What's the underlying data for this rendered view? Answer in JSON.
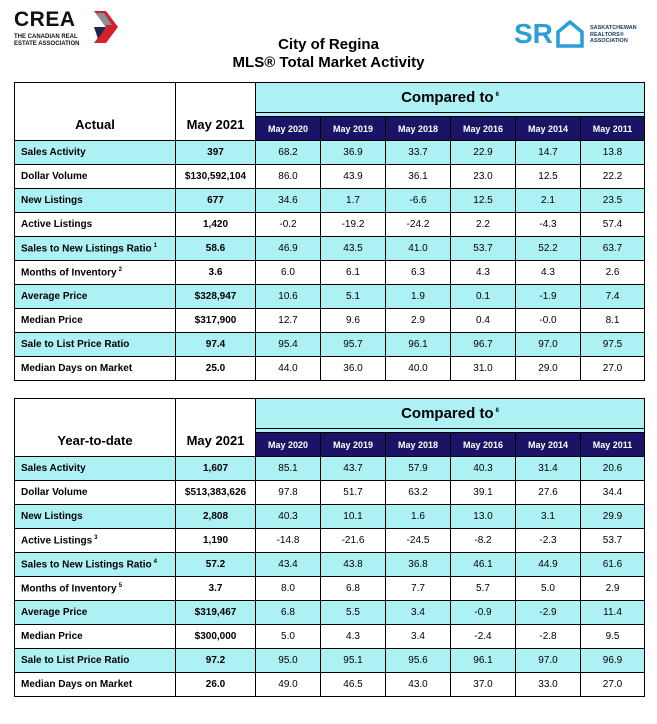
{
  "header": {
    "crea_name": "CREA",
    "crea_tagline_1": "THE CANADIAN REAL",
    "crea_tagline_2": "ESTATE ASSOCIATION",
    "sr_mark": "SR",
    "sr_line_1": "SASKATCHEWAN",
    "sr_line_2": "REALTORS®",
    "sr_line_3": "ASSOCIATION",
    "title": "City of Regina",
    "subtitle": "MLS® Total Market Activity"
  },
  "compared_label": "Compared to",
  "compared_footnote": "6",
  "current_period": "May 2021",
  "compare_periods": [
    "May 2020",
    "May 2019",
    "May 2018",
    "May 2016",
    "May 2014",
    "May 2011"
  ],
  "actual": {
    "label": "Actual",
    "rows": [
      {
        "metric": "Sales Activity",
        "fn": "",
        "value": "397",
        "cmp": [
          "68.2",
          "36.9",
          "33.7",
          "22.9",
          "14.7",
          "13.8"
        ]
      },
      {
        "metric": "Dollar Volume",
        "fn": "",
        "value": "$130,592,104",
        "cmp": [
          "86.0",
          "43.9",
          "36.1",
          "23.0",
          "12.5",
          "22.2"
        ]
      },
      {
        "metric": "New Listings",
        "fn": "",
        "value": "677",
        "cmp": [
          "34.6",
          "1.7",
          "-6.6",
          "12.5",
          "2.1",
          "23.5"
        ]
      },
      {
        "metric": "Active Listings",
        "fn": "",
        "value": "1,420",
        "cmp": [
          "-0.2",
          "-19.2",
          "-24.2",
          "2.2",
          "-4.3",
          "57.4"
        ]
      },
      {
        "metric": "Sales to New Listings Ratio",
        "fn": "1",
        "value": "58.6",
        "cmp": [
          "46.9",
          "43.5",
          "41.0",
          "53.7",
          "52.2",
          "63.7"
        ]
      },
      {
        "metric": "Months of Inventory",
        "fn": "2",
        "value": "3.6",
        "cmp": [
          "6.0",
          "6.1",
          "6.3",
          "4.3",
          "4.3",
          "2.6"
        ]
      },
      {
        "metric": "Average Price",
        "fn": "",
        "value": "$328,947",
        "cmp": [
          "10.6",
          "5.1",
          "1.9",
          "0.1",
          "-1.9",
          "7.4"
        ]
      },
      {
        "metric": "Median Price",
        "fn": "",
        "value": "$317,900",
        "cmp": [
          "12.7",
          "9.6",
          "2.9",
          "0.4",
          "-0.0",
          "8.1"
        ]
      },
      {
        "metric": "Sale to List Price Ratio",
        "fn": "",
        "value": "97.4",
        "cmp": [
          "95.4",
          "95.7",
          "96.1",
          "96.7",
          "97.0",
          "97.5"
        ]
      },
      {
        "metric": "Median Days on Market",
        "fn": "",
        "value": "25.0",
        "cmp": [
          "44.0",
          "36.0",
          "40.0",
          "31.0",
          "29.0",
          "27.0"
        ]
      }
    ]
  },
  "ytd": {
    "label": "Year-to-date",
    "rows": [
      {
        "metric": "Sales Activity",
        "fn": "",
        "value": "1,607",
        "cmp": [
          "85.1",
          "43.7",
          "57.9",
          "40.3",
          "31.4",
          "20.6"
        ]
      },
      {
        "metric": "Dollar Volume",
        "fn": "",
        "value": "$513,383,626",
        "cmp": [
          "97.8",
          "51.7",
          "63.2",
          "39.1",
          "27.6",
          "34.4"
        ]
      },
      {
        "metric": "New Listings",
        "fn": "",
        "value": "2,808",
        "cmp": [
          "40.3",
          "10.1",
          "1.6",
          "13.0",
          "3.1",
          "29.9"
        ]
      },
      {
        "metric": "Active Listings",
        "fn": "3",
        "value": "1,190",
        "cmp": [
          "-14.8",
          "-21.6",
          "-24.5",
          "-8.2",
          "-2.3",
          "53.7"
        ]
      },
      {
        "metric": "Sales to New Listings Ratio",
        "fn": "4",
        "value": "57.2",
        "cmp": [
          "43.4",
          "43.8",
          "36.8",
          "46.1",
          "44.9",
          "61.6"
        ]
      },
      {
        "metric": "Months of Inventory",
        "fn": "5",
        "value": "3.7",
        "cmp": [
          "8.0",
          "6.8",
          "7.7",
          "5.7",
          "5.0",
          "2.9"
        ]
      },
      {
        "metric": "Average Price",
        "fn": "",
        "value": "$319,467",
        "cmp": [
          "6.8",
          "5.5",
          "3.4",
          "-0.9",
          "-2.9",
          "11.4"
        ]
      },
      {
        "metric": "Median Price",
        "fn": "",
        "value": "$300,000",
        "cmp": [
          "5.0",
          "4.3",
          "3.4",
          "-2.4",
          "-2.8",
          "9.5"
        ]
      },
      {
        "metric": "Sale to List Price Ratio",
        "fn": "",
        "value": "97.2",
        "cmp": [
          "95.0",
          "95.1",
          "95.6",
          "96.1",
          "97.0",
          "96.9"
        ]
      },
      {
        "metric": "Median Days on Market",
        "fn": "",
        "value": "26.0",
        "cmp": [
          "49.0",
          "46.5",
          "43.0",
          "37.0",
          "33.0",
          "27.0"
        ]
      }
    ]
  },
  "colors": {
    "highlight": "#aef1f4",
    "period_header": "#1b1466",
    "crea_red": "#d2232a",
    "crea_navy": "#1b2a4a",
    "sr_blue": "#2a9fd6"
  }
}
